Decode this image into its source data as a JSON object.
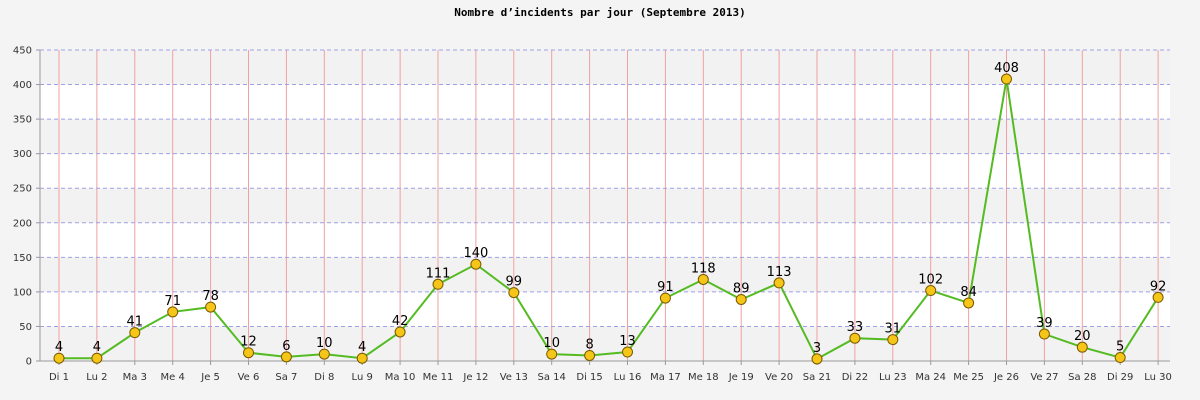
{
  "chart_data": {
    "type": "line",
    "title": "Nombre d’incidents par jour (Septembre 2013)",
    "xlabel": "",
    "ylabel": "",
    "categories": [
      "Di 1",
      "Lu 2",
      "Ma 3",
      "Me 4",
      "Je 5",
      "Ve 6",
      "Sa 7",
      "Di 8",
      "Lu 9",
      "Ma 10",
      "Me 11",
      "Je 12",
      "Ve 13",
      "Sa 14",
      "Di 15",
      "Lu 16",
      "Ma 17",
      "Me 18",
      "Je 19",
      "Ve 20",
      "Sa 21",
      "Di 22",
      "Lu 23",
      "Ma 24",
      "Me 25",
      "Je 26",
      "Ve 27",
      "Sa 28",
      "Di 29",
      "Lu 30"
    ],
    "values": [
      4,
      4,
      41,
      71,
      78,
      12,
      6,
      10,
      4,
      42,
      111,
      140,
      99,
      10,
      8,
      13,
      91,
      118,
      89,
      113,
      3,
      33,
      31,
      102,
      84,
      408,
      39,
      20,
      5,
      92
    ],
    "y_ticks": [
      0,
      50,
      100,
      150,
      200,
      250,
      300,
      350,
      400,
      450
    ],
    "ylim": [
      0,
      450
    ],
    "grid": true,
    "legend": "none",
    "colors": {
      "line": "#55bb22",
      "marker_fill": "#f5c518",
      "marker_stroke": "#7a5a00",
      "vgrid": "#f0a0a0",
      "hgrid": "#a0a0e6",
      "band_light": "#ffffff",
      "band_dark": "#f2f2f2",
      "axis": "#999999"
    }
  }
}
